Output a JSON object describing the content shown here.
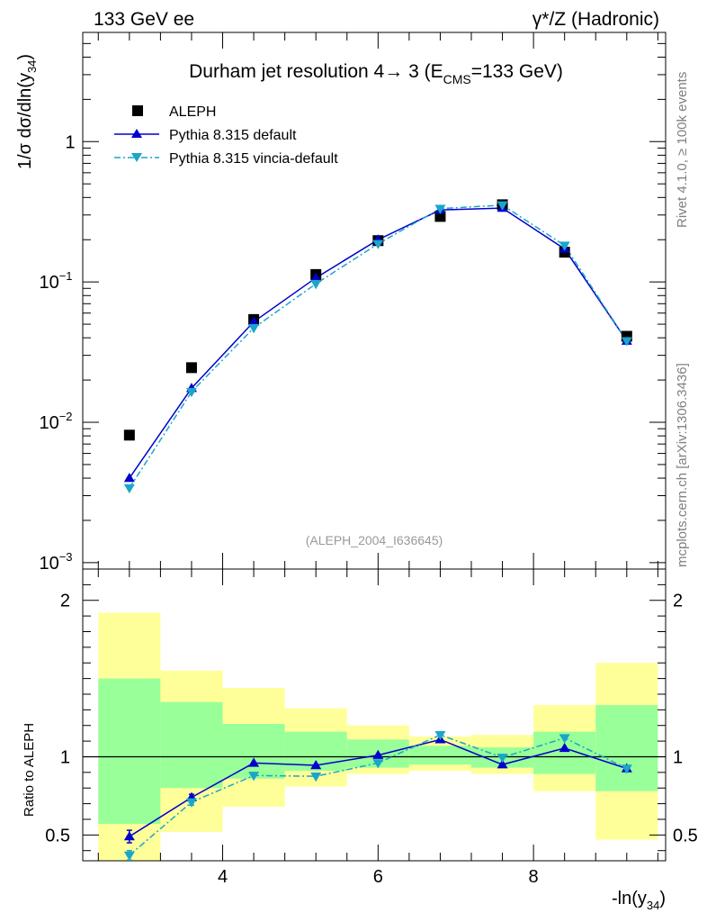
{
  "header": {
    "left": "133 GeV ee",
    "right": "γ*/Z (Hadronic)"
  },
  "side_notes": {
    "rivet": "Rivet 4.1.0, ≥ 100k events",
    "source": "mcplots.cern.ch [arXiv:1306.3436]"
  },
  "watermark": "(ALEPH_2004_I636645)",
  "colors": {
    "data": "#000000",
    "pythia_default": "#0000cc",
    "vincia": "#1aa6c9",
    "band_inner": "#99ff99",
    "band_outer": "#ffff99"
  },
  "chart_data": [
    {
      "type": "line",
      "title": "Durham jet resolution 4→ 3 (E_CMS=133 GeV)",
      "title_main": "Durham jet resolution 4",
      "title_arrow": "→",
      "title_rest": " 3 (E",
      "title_sub": "CMS",
      "title_end": "=133 GeV)",
      "xlabel": "-ln(y_34)",
      "ylabel": "1/σ dσ/dln(y_34)",
      "yscale": "log",
      "xlim": [
        2.2,
        9.7
      ],
      "ylim": [
        0.0009,
        6
      ],
      "legend_position": "top-left",
      "y_ticks": [
        {
          "value": 1,
          "base": "1",
          "exp": ""
        },
        {
          "value": 0.1,
          "base": "10",
          "exp": "−1"
        },
        {
          "value": 0.01,
          "base": "10",
          "exp": "−2"
        },
        {
          "value": 0.001,
          "base": "10",
          "exp": "−3"
        }
      ],
      "series": [
        {
          "name": "ALEPH",
          "style": "square",
          "x": [
            2.8,
            3.6,
            4.4,
            5.2,
            6.0,
            6.8,
            7.6,
            8.4,
            9.2
          ],
          "y": [
            0.0081,
            0.0245,
            0.054,
            0.113,
            0.197,
            0.293,
            0.355,
            0.163,
            0.041
          ]
        },
        {
          "name": "Pythia 8.315 default",
          "style": "triangle-up",
          "x": [
            2.8,
            3.6,
            4.4,
            5.2,
            6.0,
            6.8,
            7.6,
            8.4,
            9.2
          ],
          "y": [
            0.004,
            0.0175,
            0.052,
            0.107,
            0.2,
            0.326,
            0.336,
            0.172,
            0.038
          ]
        },
        {
          "name": "Pythia 8.315 vincia-default",
          "style": "triangle-down",
          "x": [
            2.8,
            3.6,
            4.4,
            5.2,
            6.0,
            6.8,
            7.6,
            8.4,
            9.2
          ],
          "y": [
            0.0034,
            0.0165,
            0.047,
            0.097,
            0.187,
            0.333,
            0.353,
            0.182,
            0.038
          ]
        }
      ]
    },
    {
      "type": "line",
      "title": "",
      "xlabel": "-ln(y_34)",
      "ylabel": "Ratio to ALEPH",
      "xlim": [
        2.2,
        9.7
      ],
      "ylim": [
        0.335,
        2.2
      ],
      "x_ticks": [
        4,
        6,
        8
      ],
      "y_ticks": [
        0.5,
        1,
        2
      ],
      "reference_line": 1,
      "bands": [
        {
          "x0": 2.4,
          "x1": 3.2,
          "inner": [
            0.57,
            1.5
          ],
          "outer": [
            0.335,
            1.92
          ]
        },
        {
          "x0": 3.2,
          "x1": 4.0,
          "inner": [
            0.8,
            1.35
          ],
          "outer": [
            0.52,
            1.55
          ]
        },
        {
          "x0": 4.0,
          "x1": 4.8,
          "inner": [
            0.86,
            1.21
          ],
          "outer": [
            0.68,
            1.44
          ]
        },
        {
          "x0": 4.8,
          "x1": 5.6,
          "inner": [
            0.91,
            1.16
          ],
          "outer": [
            0.81,
            1.31
          ]
        },
        {
          "x0": 5.6,
          "x1": 6.4,
          "inner": [
            0.93,
            1.11
          ],
          "outer": [
            0.89,
            1.2
          ]
        },
        {
          "x0": 6.4,
          "x1": 7.2,
          "inner": [
            0.95,
            1.07
          ],
          "outer": [
            0.91,
            1.13
          ]
        },
        {
          "x0": 7.2,
          "x1": 8.0,
          "inner": [
            0.93,
            1.06
          ],
          "outer": [
            0.89,
            1.14
          ]
        },
        {
          "x0": 8.0,
          "x1": 8.8,
          "inner": [
            0.89,
            1.16
          ],
          "outer": [
            0.78,
            1.33
          ]
        },
        {
          "x0": 8.8,
          "x1": 9.6,
          "inner": [
            0.78,
            1.33
          ],
          "outer": [
            0.47,
            1.6
          ]
        }
      ],
      "series": [
        {
          "name": "Pythia 8.315 default",
          "style": "triangle-up",
          "x": [
            2.8,
            3.6,
            4.4,
            5.2,
            6.0,
            6.8,
            7.6,
            8.4,
            9.2
          ],
          "y": [
            0.49,
            0.74,
            0.96,
            0.945,
            1.01,
            1.11,
            0.95,
            1.055,
            0.925
          ],
          "err": [
            0.04,
            0.02,
            0,
            0,
            0,
            0,
            0,
            0,
            0
          ]
        },
        {
          "name": "Pythia 8.315 vincia-default",
          "style": "triangle-down",
          "x": [
            2.8,
            3.6,
            4.4,
            5.2,
            6.0,
            6.8,
            7.6,
            8.4,
            9.2
          ],
          "y": [
            0.37,
            0.71,
            0.88,
            0.875,
            0.96,
            1.14,
            0.995,
            1.12,
            0.925
          ],
          "err": [
            0.03,
            0.02,
            0,
            0,
            0,
            0,
            0,
            0,
            0
          ]
        }
      ]
    }
  ]
}
